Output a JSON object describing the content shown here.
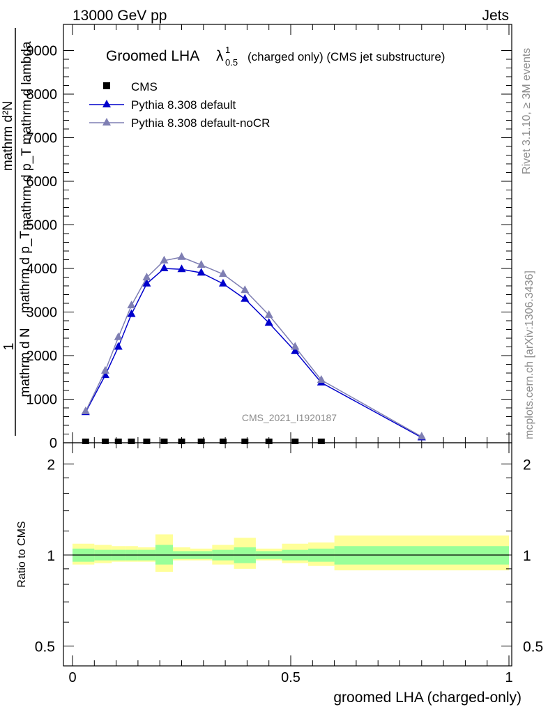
{
  "header": {
    "left": "13000 GeV pp",
    "right": "Jets"
  },
  "side_labels": {
    "rivet": "Rivet 3.1.10, ≥ 3M events",
    "mcplots": "mcplots.cern.ch [arXiv:1306.3436]"
  },
  "watermark": "CMS_2021_I1920187",
  "colors": {
    "cms": "#000000",
    "default": "#0000cc",
    "noCR": "#7f7fb3",
    "band_inner": "#99ff99",
    "band_outer": "#ffff99"
  },
  "chart_data": [
    {
      "type": "line",
      "title_main": "Groomed LHA",
      "title_symbol": "λ",
      "title_sup": "1",
      "title_sub": "0.5",
      "title_rest": "(charged only) (CMS jet substructure)",
      "ylabel_top": "mathrm d²N",
      "ylabel_bottom": "mathrm d p_T mathrm d lambda",
      "ylabel_prefix": "1",
      "ylabel_frac_top": "mathrm d N",
      "ylabel_frac_bottom": "mathrm d p_T",
      "ylim": [
        0,
        9600
      ],
      "xlim": [
        0,
        1
      ],
      "yticks": [
        0,
        1000,
        2000,
        3000,
        4000,
        5000,
        6000,
        7000,
        8000,
        9000
      ],
      "ytick_labels": [
        "0",
        "1000",
        "2000",
        "3000",
        "4000",
        "5000",
        "6000",
        "7000",
        "8000",
        "9000"
      ],
      "legend_placement": "top-left",
      "series": [
        {
          "name": "CMS",
          "marker": "square",
          "x": [
            0.03,
            0.075,
            0.105,
            0.135,
            0.17,
            0.21,
            0.25,
            0.295,
            0.345,
            0.395,
            0.45,
            0.51,
            0.57
          ],
          "y": [
            0,
            0,
            0,
            0,
            0,
            0,
            0,
            0,
            0,
            0,
            0,
            0,
            0
          ]
        },
        {
          "name": "Pythia 8.308 default",
          "marker": "triangle",
          "x": [
            0.03,
            0.075,
            0.105,
            0.135,
            0.17,
            0.21,
            0.25,
            0.295,
            0.345,
            0.395,
            0.45,
            0.51,
            0.57,
            0.8
          ],
          "y": [
            700,
            1550,
            2200,
            2950,
            3650,
            4000,
            3980,
            3900,
            3650,
            3300,
            2750,
            2100,
            1380,
            120
          ]
        },
        {
          "name": "Pythia 8.308 default-noCR",
          "marker": "triangle",
          "x": [
            0.03,
            0.075,
            0.105,
            0.135,
            0.17,
            0.21,
            0.25,
            0.295,
            0.345,
            0.395,
            0.45,
            0.51,
            0.57,
            0.8
          ],
          "y": [
            720,
            1650,
            2420,
            3150,
            3790,
            4180,
            4260,
            4080,
            3870,
            3500,
            2930,
            2200,
            1440,
            140
          ]
        }
      ]
    },
    {
      "type": "area",
      "ylabel": "Ratio to CMS",
      "xlabel": "groomed LHA (charged-only)",
      "log_y": true,
      "ylim": [
        0.43,
        2.35
      ],
      "yticks": [
        0.5,
        1,
        2
      ],
      "ytick_labels": [
        "0.5",
        "1",
        "2"
      ],
      "xticks": [
        0,
        0.5,
        1
      ],
      "xtick_labels": [
        "0",
        "0.5",
        "1"
      ],
      "bins": {
        "x_lo": [
          0.0,
          0.05,
          0.09,
          0.12,
          0.15,
          0.19,
          0.23,
          0.27,
          0.32,
          0.37,
          0.42,
          0.48,
          0.54,
          0.6
        ],
        "x_hi": [
          0.05,
          0.09,
          0.12,
          0.15,
          0.19,
          0.23,
          0.27,
          0.32,
          0.37,
          0.42,
          0.48,
          0.54,
          0.6,
          1.0
        ],
        "inner_lo": [
          0.95,
          0.96,
          0.96,
          0.96,
          0.96,
          0.93,
          0.97,
          0.97,
          0.96,
          0.94,
          0.97,
          0.96,
          0.95,
          0.93
        ],
        "inner_hi": [
          1.05,
          1.04,
          1.04,
          1.04,
          1.04,
          1.08,
          1.03,
          1.03,
          1.04,
          1.06,
          1.03,
          1.04,
          1.05,
          1.07
        ],
        "outer_lo": [
          0.93,
          0.94,
          0.95,
          0.95,
          0.95,
          0.88,
          0.96,
          0.96,
          0.93,
          0.9,
          0.96,
          0.94,
          0.92,
          0.89
        ],
        "outer_hi": [
          1.09,
          1.08,
          1.07,
          1.07,
          1.06,
          1.17,
          1.06,
          1.05,
          1.08,
          1.14,
          1.05,
          1.09,
          1.1,
          1.16
        ]
      },
      "reference": 1
    }
  ]
}
